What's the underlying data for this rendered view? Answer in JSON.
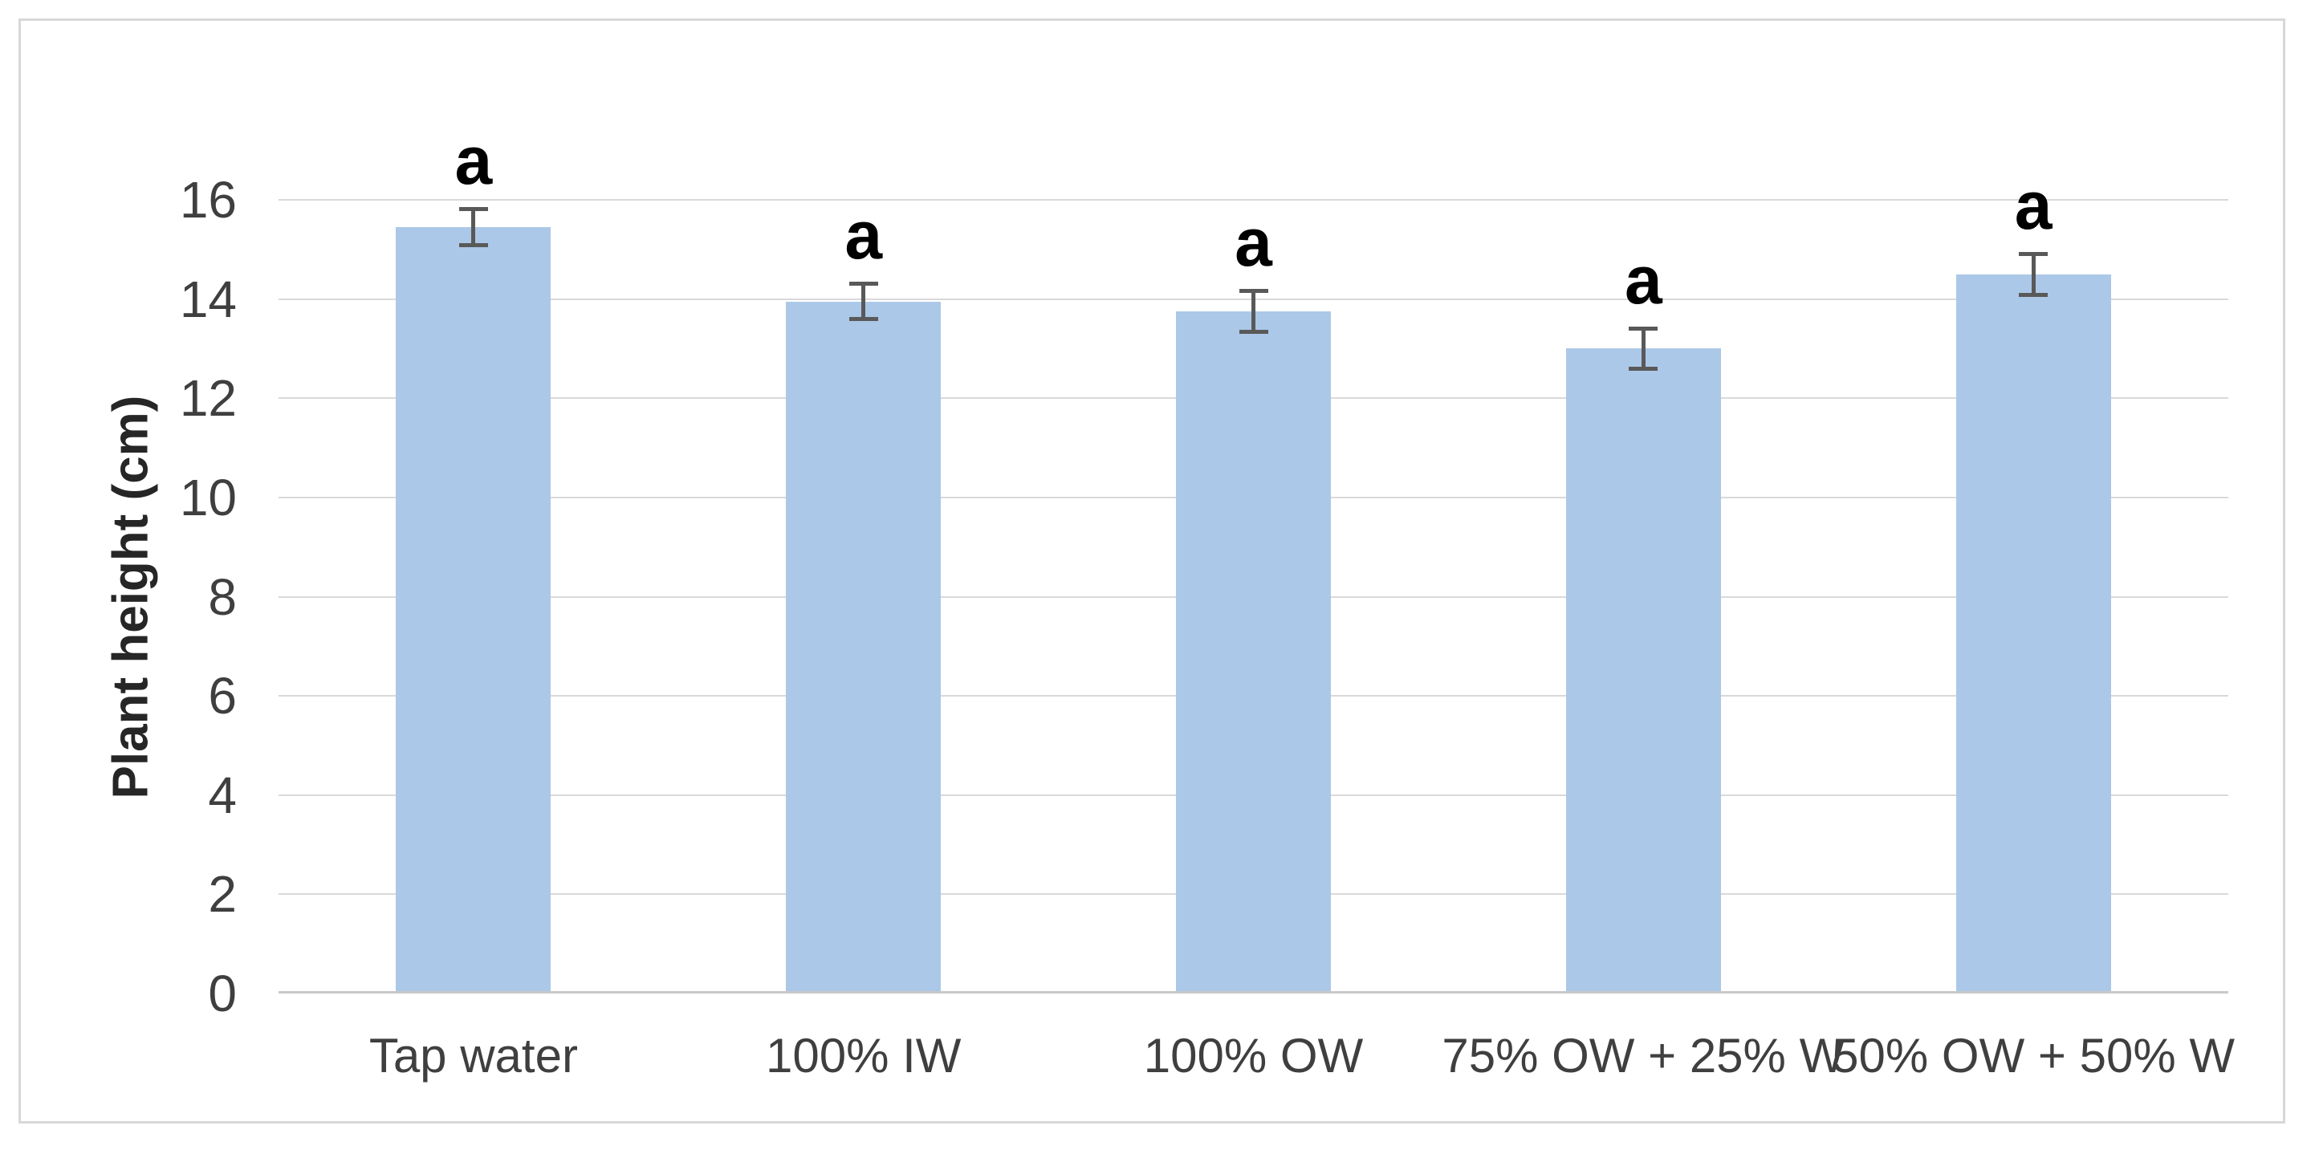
{
  "chart_data": {
    "type": "bar",
    "title": "",
    "xlabel": "",
    "ylabel": "Plant height (cm)",
    "categories": [
      "Tap water",
      "100% IW",
      "100% OW",
      "75% OW + 25% W",
      "50% OW + 50% W"
    ],
    "series": [
      {
        "name": "Plant height",
        "values": [
          15.45,
          13.95,
          13.75,
          13.0,
          14.5
        ],
        "errors": [
          0.4,
          0.4,
          0.45,
          0.45,
          0.45
        ],
        "significance_letters": [
          "a",
          "a",
          "a",
          "a",
          "a"
        ]
      }
    ],
    "ylim": [
      0,
      16
    ],
    "yticks": [
      0,
      2,
      4,
      6,
      8,
      10,
      12,
      14,
      16
    ],
    "grid": "horizontal",
    "legend_position": "none",
    "colors": {
      "bar_fill": "#ACC8E8",
      "error_bar": "#595959",
      "gridline": "#D9D9D9",
      "axis_line": "#C9C9C9",
      "tick_text": "#3F3F3F",
      "axis_title_text": "#262626",
      "significance_letter_text": "#000000",
      "frame_border": "#D8D8D8",
      "background": "#FFFFFF"
    }
  }
}
